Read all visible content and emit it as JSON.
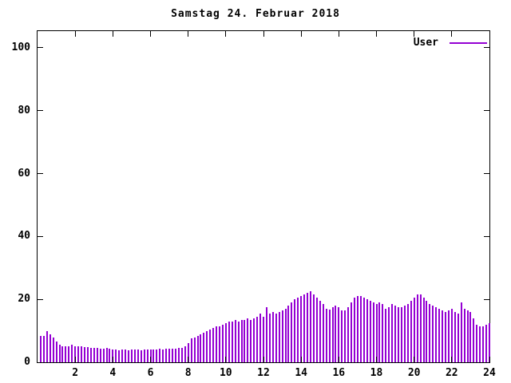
{
  "title": "Samstag 24. Februar 2018",
  "legend": {
    "label": "User"
  },
  "colors": {
    "series": "#9400d3",
    "frame": "#000000",
    "background": "#ffffff"
  },
  "chart_data": {
    "type": "bar",
    "title": "Samstag 24. Februar 2018",
    "xlabel": "",
    "ylabel": "",
    "xlim": [
      0,
      24
    ],
    "ylim": [
      0,
      105.3
    ],
    "x_ticks": [
      2,
      4,
      6,
      8,
      10,
      12,
      14,
      16,
      18,
      20,
      22,
      24
    ],
    "y_ticks": [
      0,
      20,
      40,
      60,
      80,
      100
    ],
    "grid": false,
    "legend_position": "top-right",
    "series": [
      {
        "name": "User",
        "color": "#9400d3",
        "interval_minutes": 10,
        "start_hour": 0,
        "values": [
          8.5,
          8.5,
          10,
          9,
          8,
          6.5,
          5.5,
          5,
          5,
          5,
          5.5,
          5,
          5,
          5,
          4.8,
          4.8,
          4.5,
          4.5,
          4.5,
          4.2,
          4.2,
          4.5,
          4.2,
          4,
          4,
          3.8,
          4,
          4,
          3.8,
          4,
          4,
          4,
          3.8,
          4,
          4,
          4,
          4,
          4,
          4.2,
          4,
          4.2,
          4.2,
          4.2,
          4.2,
          4.5,
          4.5,
          5,
          6,
          7.5,
          8,
          8.5,
          9,
          9.5,
          10,
          10.5,
          11,
          11.5,
          11.5,
          12,
          12.5,
          13,
          13,
          13.5,
          13,
          13.5,
          13.5,
          14,
          13.5,
          14,
          14.5,
          15.5,
          14.5,
          17.5,
          15.5,
          16,
          15.5,
          16,
          16.5,
          17,
          18,
          19,
          20,
          20.5,
          21,
          21.5,
          22,
          22.5,
          21.5,
          20.5,
          19.5,
          18.5,
          17,
          16.8,
          17.5,
          18,
          17.5,
          16.5,
          16.5,
          17.5,
          19,
          20.5,
          21,
          21,
          20.5,
          20,
          19.5,
          19,
          18.5,
          19,
          18.5,
          17,
          17.5,
          18.5,
          18,
          17.5,
          17.5,
          18,
          18.5,
          19.5,
          20.5,
          21.5,
          21.5,
          20.5,
          19.5,
          18.5,
          18,
          17.5,
          17,
          16.5,
          16,
          16.5,
          17,
          16,
          15.5,
          19,
          17,
          16.5,
          16,
          14,
          12,
          11.5,
          11.5,
          12,
          12.5
        ]
      }
    ]
  }
}
